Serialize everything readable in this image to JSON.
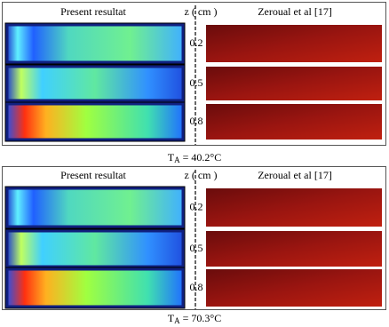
{
  "panels": [
    {
      "left_title": "Present resultat",
      "axis_label": "z ( cm )",
      "right_title": "Zeroual et al [17]",
      "rows": [
        "0.2",
        "0.5",
        "0.8"
      ],
      "caption": {
        "symbol": "T",
        "subscript": "A",
        "text": " = 40.2°C"
      }
    },
    {
      "left_title": "Present resultat",
      "axis_label": "z ( cm )",
      "right_title": "Zeroual et al [17]",
      "rows": [
        "0.2",
        "0.5",
        "0.8"
      ],
      "caption": {
        "symbol": "T",
        "subscript": "A",
        "text": " = 70.3°C"
      }
    }
  ]
}
